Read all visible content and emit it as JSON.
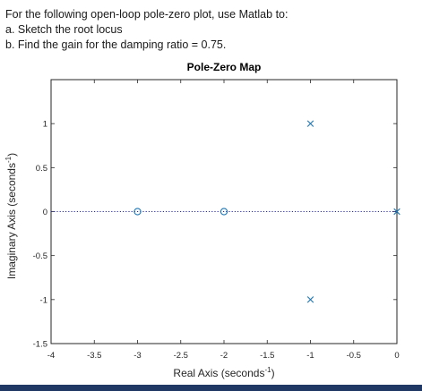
{
  "question": {
    "intro": "For the following open-loop pole-zero plot, use Matlab to:",
    "part_a": "a. Sketch the root locus",
    "part_b": "b. Find the gain for the damping ratio = 0.75."
  },
  "chart_data": {
    "type": "scatter",
    "title": "Pole-Zero Map",
    "xlabel": "Real Axis (seconds",
    "ylabel": "Imaginary Axis (seconds",
    "axis_unit_exponent": "-1",
    "axis_label_close": ")",
    "xlim": [
      -4,
      0
    ],
    "ylim": [
      -1.5,
      1.5
    ],
    "xticks": [
      -4,
      -3.5,
      -3,
      -2.5,
      -2,
      -1.5,
      -1,
      -0.5,
      0
    ],
    "xtick_labels": [
      "-4",
      "-3.5",
      "-3",
      "-2.5",
      "-2",
      "-1.5",
      "-1",
      "-0.5",
      "0"
    ],
    "yticks": [
      -1.5,
      -1,
      -0.5,
      0,
      0.5,
      1
    ],
    "ytick_labels": [
      "-1.5",
      "-1",
      "-0.5",
      "0",
      "0.5",
      "1"
    ],
    "grid": false,
    "marker_color": "#1f77b4",
    "reference_line_color": "#2c2c9c",
    "series": [
      {
        "marker": "pole-x",
        "points": [
          [
            0,
            0
          ],
          [
            -1,
            1
          ],
          [
            -1,
            -1
          ]
        ]
      },
      {
        "marker": "zero-o",
        "points": [
          [
            -3,
            0
          ],
          [
            -2,
            0
          ]
        ]
      }
    ]
  }
}
